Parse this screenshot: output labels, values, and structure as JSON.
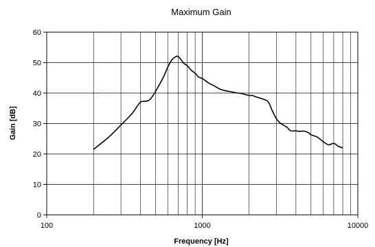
{
  "chart_data": {
    "type": "line",
    "title": "Maximum Gain",
    "xlabel": "Frequency [Hz]",
    "ylabel": "Gain [dB]",
    "xscale": "log",
    "xlim": [
      100,
      10000
    ],
    "ylim": [
      0,
      60
    ],
    "grid": true,
    "legend": "none",
    "x_ticks": [
      100,
      1000,
      10000
    ],
    "x_tick_labels": [
      "100",
      "1000",
      "10000"
    ],
    "y_ticks": [
      0,
      10,
      20,
      30,
      40,
      50,
      60
    ],
    "y_tick_labels": [
      "0",
      "10",
      "20",
      "30",
      "40",
      "50",
      "60"
    ],
    "series": [
      {
        "color": "#000000",
        "points": [
          [
            200,
            21.5
          ],
          [
            250,
            25.5
          ],
          [
            300,
            29.5
          ],
          [
            350,
            33.0
          ],
          [
            380,
            35.5
          ],
          [
            400,
            37.0
          ],
          [
            420,
            37.3
          ],
          [
            450,
            37.5
          ],
          [
            480,
            39.0
          ],
          [
            520,
            42.0
          ],
          [
            560,
            45.0
          ],
          [
            600,
            48.5
          ],
          [
            640,
            51.0
          ],
          [
            680,
            52.0
          ],
          [
            700,
            52.0
          ],
          [
            730,
            51.0
          ],
          [
            760,
            49.8
          ],
          [
            800,
            49.0
          ],
          [
            850,
            47.5
          ],
          [
            900,
            46.5
          ],
          [
            950,
            45.2
          ],
          [
            1000,
            44.8
          ],
          [
            1100,
            43.3
          ],
          [
            1200,
            42.3
          ],
          [
            1300,
            41.3
          ],
          [
            1400,
            40.8
          ],
          [
            1500,
            40.5
          ],
          [
            1700,
            40.0
          ],
          [
            1800,
            39.8
          ],
          [
            1900,
            39.5
          ],
          [
            2000,
            39.2
          ],
          [
            2100,
            39.2
          ],
          [
            2200,
            38.8
          ],
          [
            2400,
            38.2
          ],
          [
            2600,
            37.5
          ],
          [
            2700,
            36.5
          ],
          [
            2800,
            34.5
          ],
          [
            3000,
            31.5
          ],
          [
            3200,
            30.0
          ],
          [
            3500,
            28.8
          ],
          [
            3700,
            27.6
          ],
          [
            4000,
            27.6
          ],
          [
            4200,
            27.4
          ],
          [
            4500,
            27.5
          ],
          [
            4800,
            27.0
          ],
          [
            5000,
            26.3
          ],
          [
            5500,
            25.5
          ],
          [
            6000,
            24.0
          ],
          [
            6500,
            23.0
          ],
          [
            7000,
            23.5
          ],
          [
            7500,
            22.5
          ],
          [
            8000,
            22.0
          ]
        ]
      }
    ]
  }
}
